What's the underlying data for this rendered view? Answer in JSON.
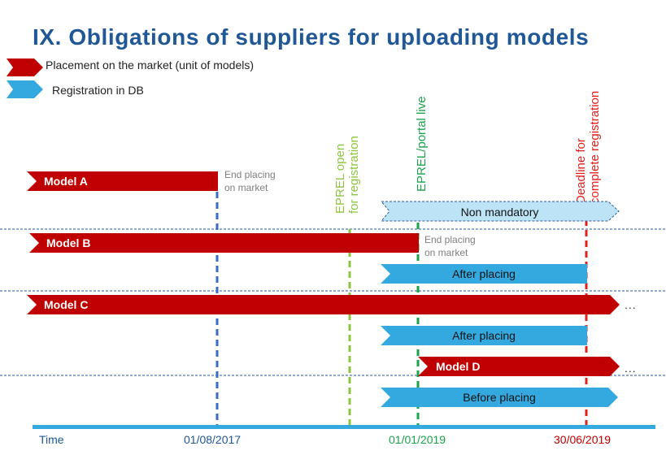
{
  "title": "IX. Obligations of suppliers for uploading models",
  "legend": {
    "placement": "Placement on the market (unit of models)",
    "registration": "Registration in DB"
  },
  "milestones": {
    "eprel_open_line1": "EPREL open",
    "eprel_open_line2": "for registration",
    "eprel_live": "EPREL/portal live",
    "deadline_line1": "Deadline for",
    "deadline_line2": "complete registration"
  },
  "bars": {
    "model_a": "Model A",
    "model_b": "Model B",
    "model_c": "Model C",
    "model_d": "Model D",
    "non_mandatory": "Non mandatory",
    "after_placing_b": "After placing",
    "after_placing_c": "After placing",
    "before_placing_d": "Before placing"
  },
  "notes": {
    "end_placing_a_line1": "End placing",
    "end_placing_a_line2": "on market",
    "end_placing_b_line1": "End placing",
    "end_placing_b_line2": "on market",
    "ellipsis_c": "...",
    "ellipsis_d": "..."
  },
  "timeline": {
    "label": "Time",
    "date1": "01/08/2017",
    "date2": "01/01/2019",
    "date3": "30/06/2019"
  },
  "colors": {
    "title": "#1f5797",
    "placement": "#c00000",
    "registration": "#34a9e0",
    "non_mandatory": "#bde3f7",
    "end_placing_line": "#3a6cc4",
    "eprel_open_line": "#8cc63f",
    "eprel_live_line": "#1aa34a",
    "deadline_line": "#e0201b"
  }
}
